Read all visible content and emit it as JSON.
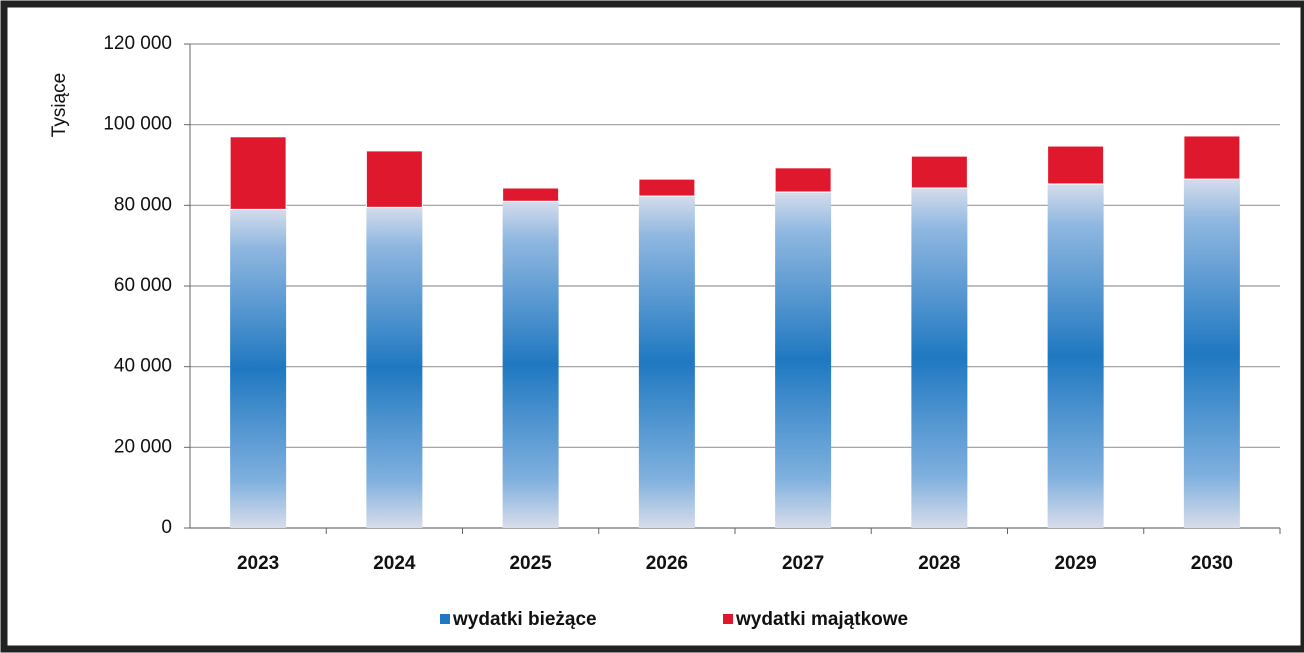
{
  "chart_data": {
    "type": "stacked_bar",
    "y_label": "Tysiące",
    "categories": [
      "2023",
      "2024",
      "2025",
      "2026",
      "2027",
      "2028",
      "2029",
      "2030"
    ],
    "series": [
      {
        "name": "wydatki bieżące",
        "color": "#1f78c1",
        "values": [
          79000,
          79500,
          81000,
          82300,
          83300,
          84300,
          85300,
          86500
        ]
      },
      {
        "name": "wydatki majątkowe",
        "color": "#e0182d",
        "values": [
          18000,
          14000,
          3300,
          4200,
          6000,
          7900,
          9400,
          10700
        ]
      }
    ],
    "ylim": [
      0,
      120000
    ],
    "yticks": [
      0,
      {
        "value": 20000,
        "label": "20 000"
      },
      {
        "value": 40000,
        "label": "40 000"
      },
      {
        "value": 60000,
        "label": "60 000"
      },
      {
        "value": 80000,
        "label": "80 000"
      },
      {
        "value": 100000,
        "label": "100 000"
      },
      {
        "value": 120000,
        "label": "120 000"
      }
    ],
    "grid": true,
    "legend": "bottom"
  }
}
